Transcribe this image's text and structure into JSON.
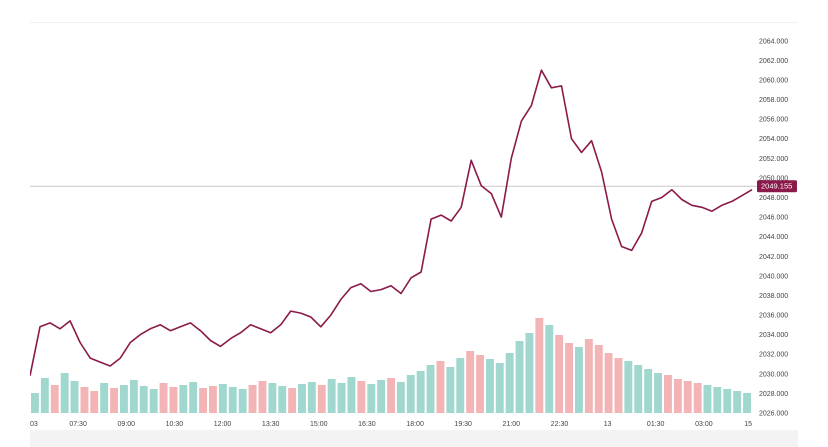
{
  "colors": {
    "line": "#8b1a4a",
    "vol_up": "#8fd0c6",
    "vol_down": "#f0a7a7",
    "hline": "#c9c9c9",
    "tag_bg": "#8b1a4a"
  },
  "chart_data": {
    "type": "line",
    "title": "",
    "xlabel": "",
    "ylabel": "",
    "ylim": [
      2026,
      2065
    ],
    "x_ticks": [
      "03",
      "07:30",
      "09:00",
      "10:30",
      "12:00",
      "13:30",
      "15:00",
      "16:30",
      "18:00",
      "19:30",
      "21:00",
      "22:30",
      "13",
      "01:30",
      "03:00",
      "15"
    ],
    "y_ticks": [
      "2064.000",
      "2062.000",
      "2060.000",
      "2058.000",
      "2056.000",
      "2054.000",
      "2052.000",
      "2050.000",
      "2048.000",
      "2046.000",
      "2044.000",
      "2042.000",
      "2040.000",
      "2038.000",
      "2036.000",
      "2034.000",
      "2032.000",
      "2030.000",
      "2028.000",
      "2026.000"
    ],
    "last_price": "2049.155",
    "last_value": 2049.155,
    "series": [
      {
        "values": [
          2029.8,
          2034.8,
          2035.2,
          2034.6,
          2035.4,
          2033.2,
          2031.6,
          2031.2,
          2030.8,
          2031.6,
          2033.2,
          2034.0,
          2034.6,
          2035.0,
          2034.4,
          2034.8,
          2035.2,
          2034.4,
          2033.4,
          2032.8,
          2033.6,
          2034.2,
          2035.0,
          2034.6,
          2034.2,
          2035.0,
          2036.4,
          2036.2,
          2035.8,
          2034.8,
          2036.0,
          2037.6,
          2038.8,
          2039.2,
          2038.4,
          2038.6,
          2039.0,
          2038.2,
          2039.8,
          2040.4,
          2045.8,
          2046.2,
          2045.6,
          2047.0,
          2051.8,
          2049.2,
          2048.4,
          2046.0,
          2052.0,
          2055.8,
          2057.4,
          2061.0,
          2059.2,
          2059.4,
          2054.0,
          2052.6,
          2053.8,
          2050.6,
          2045.8,
          2043.0,
          2042.6,
          2044.4,
          2047.6,
          2048.0,
          2048.8,
          2047.8,
          2047.2,
          2047.0,
          2046.6,
          2047.2,
          2047.6,
          2048.2,
          2048.8
        ]
      }
    ],
    "volume": [
      20,
      35,
      28,
      40,
      32,
      26,
      22,
      30,
      25,
      28,
      33,
      27,
      24,
      30,
      26,
      28,
      31,
      25,
      27,
      29,
      26,
      24,
      28,
      32,
      30,
      27,
      25,
      29,
      31,
      28,
      34,
      30,
      36,
      32,
      29,
      33,
      35,
      31,
      38,
      42,
      48,
      52,
      46,
      55,
      62,
      58,
      54,
      50,
      60,
      72,
      80,
      95,
      88,
      78,
      70,
      66,
      74,
      68,
      60,
      55,
      52,
      48,
      44,
      40,
      38,
      34,
      32,
      30,
      28,
      26,
      24,
      22,
      20
    ],
    "volume_up": [
      true,
      true,
      false,
      true,
      true,
      false,
      false,
      true,
      false,
      true,
      true,
      true,
      true,
      false,
      false,
      true,
      true,
      false,
      false,
      true,
      true,
      true,
      false,
      false,
      true,
      true,
      false,
      true,
      true,
      false,
      true,
      true,
      true,
      false,
      true,
      true,
      false,
      true,
      true,
      true,
      true,
      false,
      true,
      true,
      false,
      false,
      true,
      true,
      true,
      true,
      true,
      false,
      true,
      false,
      false,
      true,
      false,
      false,
      false,
      false,
      true,
      true,
      true,
      true,
      false,
      false,
      false,
      false,
      true,
      true,
      true,
      true,
      true
    ]
  }
}
